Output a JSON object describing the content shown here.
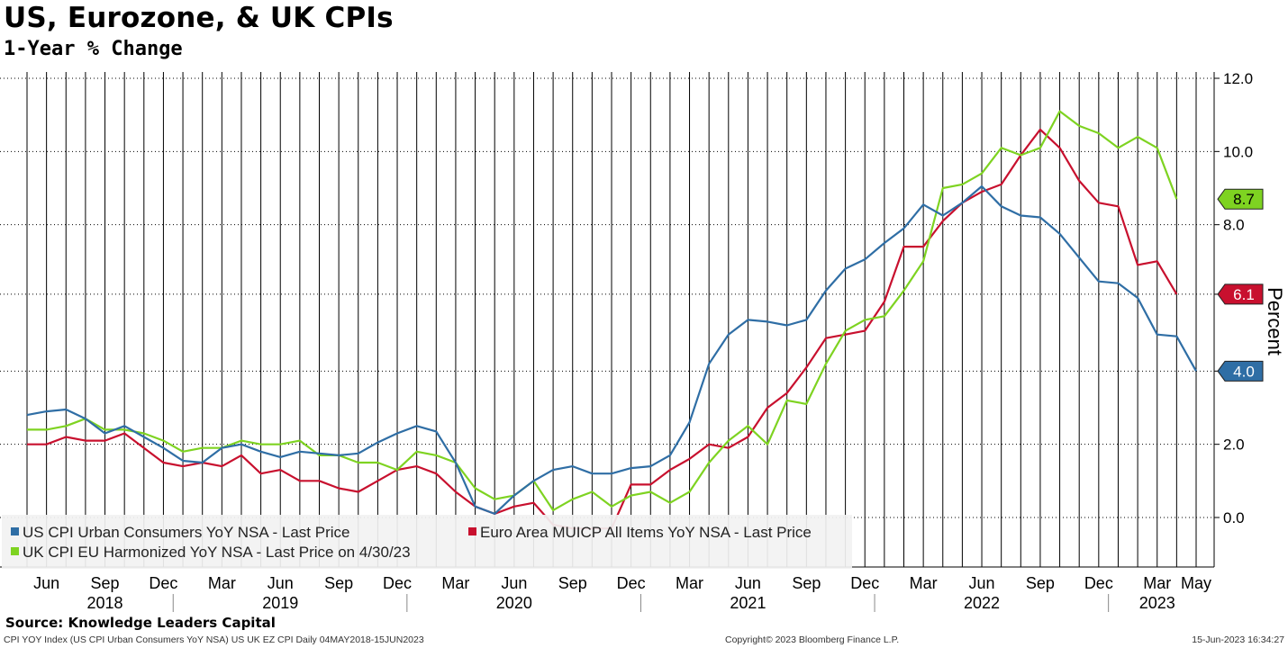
{
  "header": {
    "title": "US, Eurozone, & UK CPIs",
    "subtitle": "1-Year % Change"
  },
  "footer": {
    "source": "Source: Knowledge Leaders Capital",
    "ticker_line": "CPI YOY Index (US CPI Urban Consumers YoY NSA) US UK EZ CPI  Daily 04MAY2018-15JUN2023",
    "copyright": "Copyright© 2023 Bloomberg Finance L.P.",
    "timestamp": "15-Jun-2023 16:34:27"
  },
  "colors": {
    "us": "#2f6ea5",
    "euro": "#c8102e",
    "uk": "#7ed321",
    "gridline": "#000000"
  },
  "chart_data": {
    "type": "line",
    "title": "US, Eurozone, & UK CPIs",
    "subtitle": "1-Year % Change",
    "ylabel": "Percent",
    "ylim": [
      -1.4,
      12.0
    ],
    "yticks": [
      0.0,
      2.0,
      4.0,
      6.1,
      8.0,
      10.0,
      12.0
    ],
    "ytick_labels": [
      "0.0",
      "2.0",
      "4.0",
      "6.1",
      "8.0",
      "10.0",
      "12.0"
    ],
    "x_start": "2018-05",
    "x_end": "2023-05",
    "month_labels": [
      {
        "label": "Jun",
        "month": "2018-06"
      },
      {
        "label": "Sep",
        "month": "2018-09"
      },
      {
        "label": "Dec",
        "month": "2018-12"
      },
      {
        "label": "Mar",
        "month": "2019-03"
      },
      {
        "label": "Jun",
        "month": "2019-06"
      },
      {
        "label": "Sep",
        "month": "2019-09"
      },
      {
        "label": "Dec",
        "month": "2019-12"
      },
      {
        "label": "Mar",
        "month": "2020-03"
      },
      {
        "label": "Jun",
        "month": "2020-06"
      },
      {
        "label": "Sep",
        "month": "2020-09"
      },
      {
        "label": "Dec",
        "month": "2020-12"
      },
      {
        "label": "Mar",
        "month": "2021-03"
      },
      {
        "label": "Jun",
        "month": "2021-06"
      },
      {
        "label": "Sep",
        "month": "2021-09"
      },
      {
        "label": "Dec",
        "month": "2021-12"
      },
      {
        "label": "Mar",
        "month": "2022-03"
      },
      {
        "label": "Jun",
        "month": "2022-06"
      },
      {
        "label": "Sep",
        "month": "2022-09"
      },
      {
        "label": "Dec",
        "month": "2022-12"
      },
      {
        "label": "Mar",
        "month": "2023-03"
      },
      {
        "label": "May",
        "month": "2023-05"
      }
    ],
    "year_labels": [
      {
        "label": "2018",
        "month": "2018-09"
      },
      {
        "label": "2019",
        "month": "2019-06"
      },
      {
        "label": "2020",
        "month": "2020-06"
      },
      {
        "label": "2021",
        "month": "2021-06"
      },
      {
        "label": "2022",
        "month": "2022-06"
      },
      {
        "label": "2023",
        "month": "2023-03"
      }
    ],
    "year_dividers": [
      "2019-01",
      "2020-01",
      "2021-01",
      "2022-01",
      "2023-01"
    ],
    "legend": {
      "placement": "bottom-left",
      "entries": [
        {
          "label": "US CPI Urban Consumers YoY NSA - Last Price",
          "series": "us"
        },
        {
          "label": "Euro Area MUICP All Items YoY NSA - Last Price",
          "series": "euro"
        },
        {
          "label": "UK CPI EU Harmonized YoY NSA - Last Price on 4/30/23",
          "series": "uk"
        }
      ]
    },
    "grid": "vertical-monthly",
    "series": [
      {
        "key": "us",
        "start": "2018-05",
        "last_label": "4.0",
        "values": [
          2.8,
          2.9,
          2.95,
          2.7,
          2.3,
          2.5,
          2.2,
          1.9,
          1.55,
          1.5,
          1.9,
          2.0,
          1.8,
          1.65,
          1.8,
          1.75,
          1.7,
          1.75,
          2.05,
          2.3,
          2.5,
          2.35,
          1.5,
          0.3,
          0.1,
          0.6,
          1.0,
          1.3,
          1.4,
          1.2,
          1.2,
          1.35,
          1.4,
          1.7,
          2.6,
          4.2,
          5.0,
          5.4,
          5.35,
          5.25,
          5.4,
          6.2,
          6.8,
          7.05,
          7.5,
          7.9,
          8.55,
          8.25,
          8.6,
          9.05,
          8.5,
          8.25,
          8.2,
          7.75,
          7.1,
          6.45,
          6.4,
          6.0,
          5.0,
          4.95,
          4.0
        ]
      },
      {
        "key": "euro",
        "start": "2018-05",
        "last_label": "6.1",
        "values": [
          2.0,
          2.0,
          2.2,
          2.1,
          2.1,
          2.3,
          1.9,
          1.5,
          1.4,
          1.5,
          1.4,
          1.7,
          1.2,
          1.3,
          1.0,
          1.0,
          0.8,
          0.7,
          1.0,
          1.3,
          1.4,
          1.2,
          0.7,
          0.3,
          0.1,
          0.3,
          0.4,
          -0.2,
          -0.3,
          -0.3,
          -0.3,
          0.9,
          0.9,
          1.3,
          1.6,
          2.0,
          1.9,
          2.2,
          3.0,
          3.4,
          4.1,
          4.9,
          5.0,
          5.1,
          5.9,
          7.4,
          7.4,
          8.1,
          8.6,
          8.9,
          9.1,
          9.9,
          10.6,
          10.1,
          9.2,
          8.6,
          8.5,
          6.9,
          7.0,
          6.1
        ]
      },
      {
        "key": "uk",
        "start": "2018-05",
        "last_label": "8.7",
        "values": [
          2.4,
          2.4,
          2.5,
          2.7,
          2.4,
          2.4,
          2.3,
          2.1,
          1.8,
          1.9,
          1.9,
          2.1,
          2.0,
          2.0,
          2.1,
          1.7,
          1.7,
          1.5,
          1.5,
          1.3,
          1.8,
          1.7,
          1.5,
          0.8,
          0.5,
          0.6,
          1.0,
          0.2,
          0.5,
          0.7,
          0.3,
          0.6,
          0.7,
          0.4,
          0.7,
          1.5,
          2.1,
          2.5,
          2.0,
          3.2,
          3.1,
          4.2,
          5.1,
          5.4,
          5.5,
          6.2,
          7.0,
          9.0,
          9.1,
          9.4,
          10.1,
          9.9,
          10.1,
          11.1,
          10.7,
          10.5,
          10.1,
          10.4,
          10.1,
          8.7
        ]
      }
    ]
  }
}
